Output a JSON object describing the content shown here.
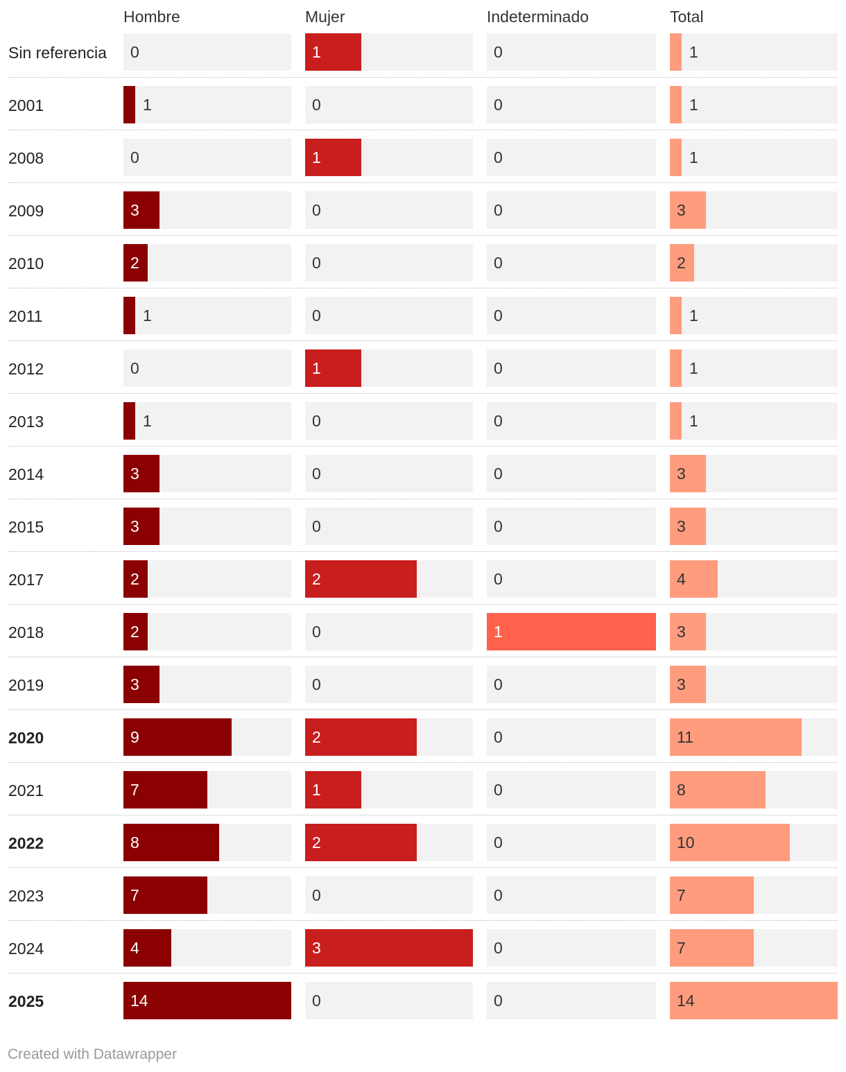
{
  "chart_data": {
    "type": "table",
    "columns": [
      {
        "key": "hombre",
        "label": "Hombre",
        "max": 14,
        "color": "#8b0000"
      },
      {
        "key": "mujer",
        "label": "Mujer",
        "max": 3,
        "color": "#c81e1e"
      },
      {
        "key": "indeterminado",
        "label": "Indeterminado",
        "max": 1,
        "color": "#ff614c"
      },
      {
        "key": "total",
        "label": "Total",
        "max": 14,
        "color": "#ff9c7e"
      }
    ],
    "rows": [
      {
        "label": "Sin referencia",
        "bold": false,
        "hombre": 0,
        "mujer": 1,
        "indeterminado": 0,
        "total": 1
      },
      {
        "label": "2001",
        "bold": false,
        "hombre": 1,
        "mujer": 0,
        "indeterminado": 0,
        "total": 1
      },
      {
        "label": "2008",
        "bold": false,
        "hombre": 0,
        "mujer": 1,
        "indeterminado": 0,
        "total": 1
      },
      {
        "label": "2009",
        "bold": false,
        "hombre": 3,
        "mujer": 0,
        "indeterminado": 0,
        "total": 3
      },
      {
        "label": "2010",
        "bold": false,
        "hombre": 2,
        "mujer": 0,
        "indeterminado": 0,
        "total": 2
      },
      {
        "label": "2011",
        "bold": false,
        "hombre": 1,
        "mujer": 0,
        "indeterminado": 0,
        "total": 1
      },
      {
        "label": "2012",
        "bold": false,
        "hombre": 0,
        "mujer": 1,
        "indeterminado": 0,
        "total": 1
      },
      {
        "label": "2013",
        "bold": false,
        "hombre": 1,
        "mujer": 0,
        "indeterminado": 0,
        "total": 1
      },
      {
        "label": "2014",
        "bold": false,
        "hombre": 3,
        "mujer": 0,
        "indeterminado": 0,
        "total": 3
      },
      {
        "label": "2015",
        "bold": false,
        "hombre": 3,
        "mujer": 0,
        "indeterminado": 0,
        "total": 3
      },
      {
        "label": "2017",
        "bold": false,
        "hombre": 2,
        "mujer": 2,
        "indeterminado": 0,
        "total": 4
      },
      {
        "label": "2018",
        "bold": false,
        "hombre": 2,
        "mujer": 0,
        "indeterminado": 1,
        "total": 3
      },
      {
        "label": "2019",
        "bold": false,
        "hombre": 3,
        "mujer": 0,
        "indeterminado": 0,
        "total": 3
      },
      {
        "label": "2020",
        "bold": true,
        "hombre": 9,
        "mujer": 2,
        "indeterminado": 0,
        "total": 11
      },
      {
        "label": "2021",
        "bold": false,
        "hombre": 7,
        "mujer": 1,
        "indeterminado": 0,
        "total": 8
      },
      {
        "label": "2022",
        "bold": true,
        "hombre": 8,
        "mujer": 2,
        "indeterminado": 0,
        "total": 10
      },
      {
        "label": "2023",
        "bold": false,
        "hombre": 7,
        "mujer": 0,
        "indeterminado": 0,
        "total": 7
      },
      {
        "label": "2024",
        "bold": false,
        "hombre": 4,
        "mujer": 3,
        "indeterminado": 0,
        "total": 7
      },
      {
        "label": "2025",
        "bold": true,
        "hombre": 14,
        "mujer": 0,
        "indeterminado": 0,
        "total": 14
      }
    ]
  },
  "colors": {
    "cell_background": "#f2f2f2",
    "text_on_dark": "#ffffff",
    "text_default": "#333333"
  },
  "footer": {
    "credit": "Created with Datawrapper"
  }
}
